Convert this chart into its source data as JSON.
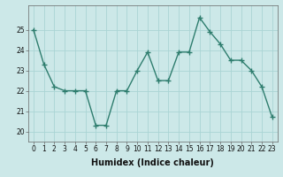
{
  "x": [
    0,
    1,
    2,
    3,
    4,
    5,
    6,
    7,
    8,
    9,
    10,
    11,
    12,
    13,
    14,
    15,
    16,
    17,
    18,
    19,
    20,
    21,
    22,
    23
  ],
  "y": [
    25.0,
    23.3,
    22.2,
    22.0,
    22.0,
    22.0,
    20.3,
    20.3,
    22.0,
    22.0,
    23.0,
    23.9,
    22.5,
    22.5,
    23.9,
    23.9,
    25.6,
    24.9,
    24.3,
    23.5,
    23.5,
    23.0,
    22.2,
    20.7
  ],
  "line_color": "#2e7d6e",
  "marker": "+",
  "marker_size": 4,
  "marker_linewidth": 1.0,
  "line_width": 1.0,
  "background_color": "#cce8e8",
  "grid_color": "#aad4d4",
  "xlabel": "Humidex (Indice chaleur)",
  "ylim": [
    19.5,
    26.2
  ],
  "xlim": [
    -0.5,
    23.5
  ],
  "yticks": [
    20,
    21,
    22,
    23,
    24,
    25
  ],
  "xticks": [
    0,
    1,
    2,
    3,
    4,
    5,
    6,
    7,
    8,
    9,
    10,
    11,
    12,
    13,
    14,
    15,
    16,
    17,
    18,
    19,
    20,
    21,
    22,
    23
  ],
  "tick_fontsize": 5.5,
  "xlabel_fontsize": 7
}
